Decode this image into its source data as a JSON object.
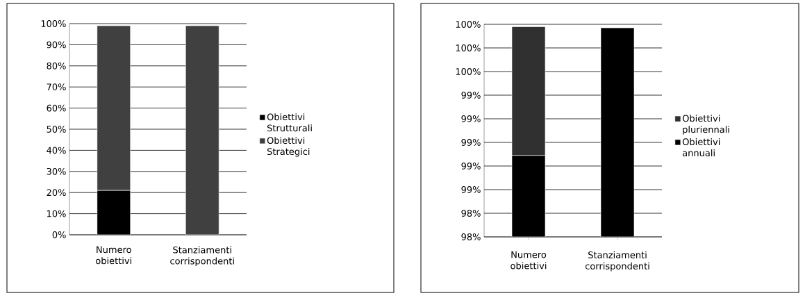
{
  "chart_data": [
    {
      "type": "bar",
      "stacked": true,
      "categories": [
        "Numero obiettivi",
        "Stanziamenti corrispondenti"
      ],
      "series": [
        {
          "name": "Obiettivi Strutturali",
          "color": "#000000",
          "values": [
            21,
            0
          ]
        },
        {
          "name": "Obiettivi Strategici",
          "color": "#404040",
          "values": [
            78,
            99
          ]
        }
      ],
      "ylim": [
        0,
        100
      ],
      "yticks": [
        {
          "value": 0,
          "label": "0%"
        },
        {
          "value": 10,
          "label": "10%"
        },
        {
          "value": 20,
          "label": "20%"
        },
        {
          "value": 30,
          "label": "30%"
        },
        {
          "value": 40,
          "label": "40%"
        },
        {
          "value": 50,
          "label": "50%"
        },
        {
          "value": 60,
          "label": "60%"
        },
        {
          "value": 70,
          "label": "70%"
        },
        {
          "value": 80,
          "label": "80%"
        },
        {
          "value": 90,
          "label": "90%"
        },
        {
          "value": 100,
          "label": "100%"
        }
      ],
      "grid": "y",
      "legend": "right"
    },
    {
      "type": "bar",
      "categories": [
        "Numero obiettivi",
        "Stanziamenti corrispondenti"
      ],
      "series": [
        {
          "name": "Obiettivi pluriennali",
          "color": "#303030",
          "base": [
            98.89,
            null
          ],
          "values": [
            1.09,
            null
          ]
        },
        {
          "name": "Obiettivi annuali",
          "color": "#000000",
          "values": [
            98.89,
            99.97
          ]
        }
      ],
      "ylim": [
        98.2,
        100
      ],
      "yticks": [
        {
          "value": 98.2,
          "label": "98%"
        },
        {
          "value": 98.4,
          "label": "98%"
        },
        {
          "value": 98.6,
          "label": "99%"
        },
        {
          "value": 98.8,
          "label": "99%"
        },
        {
          "value": 99.0,
          "label": "99%"
        },
        {
          "value": 99.2,
          "label": "99%"
        },
        {
          "value": 99.4,
          "label": "99%"
        },
        {
          "value": 99.6,
          "label": "100%"
        },
        {
          "value": 99.8,
          "label": "100%"
        },
        {
          "value": 100.0,
          "label": "100%"
        }
      ],
      "grid": "y",
      "legend": "right"
    }
  ]
}
